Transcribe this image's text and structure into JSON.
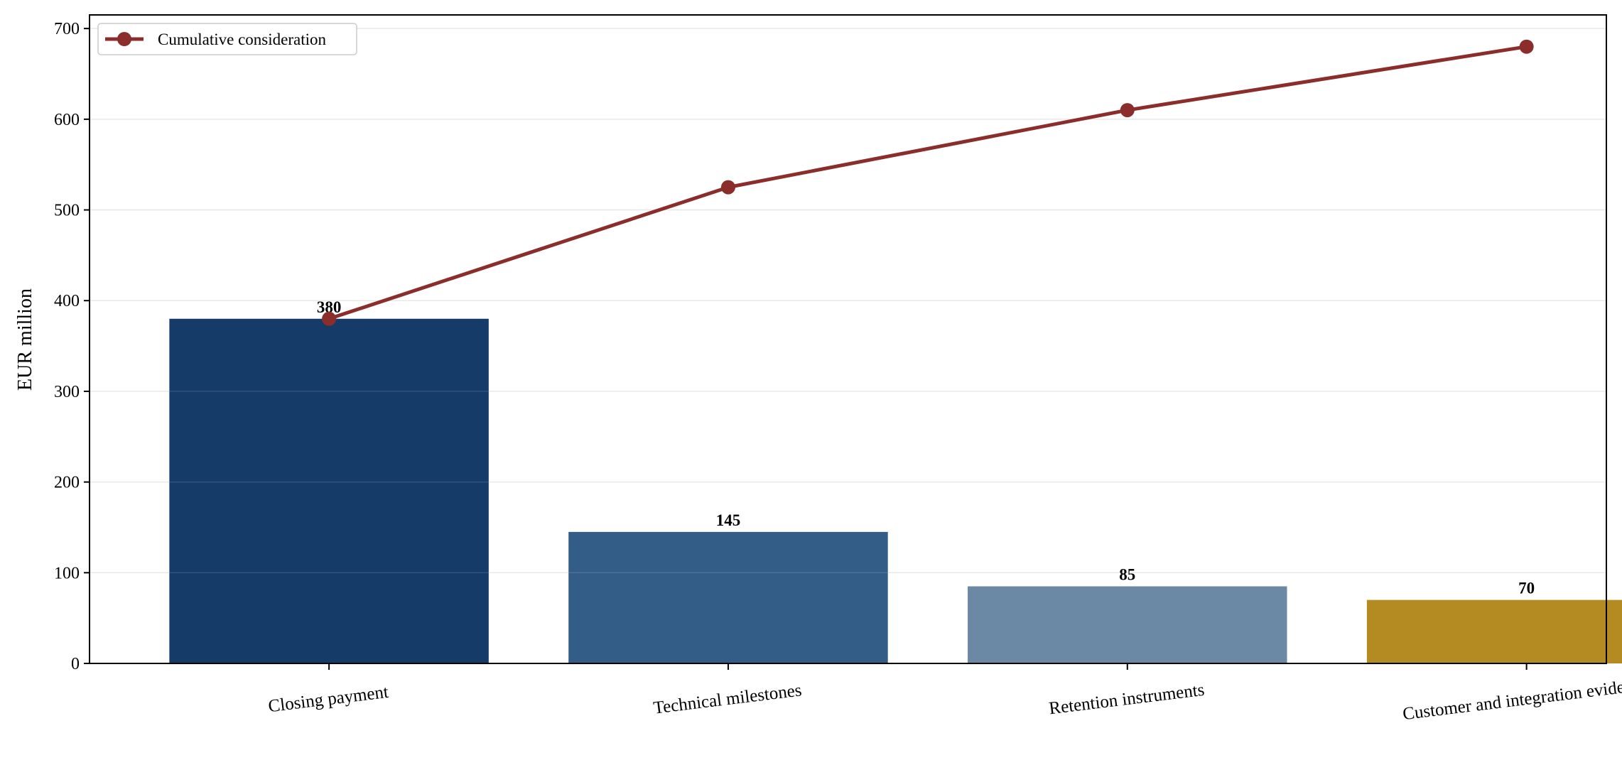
{
  "chart_data": {
    "type": "bar",
    "ylabel": "EUR million",
    "ylim": [
      0,
      715
    ],
    "yticks": [
      0,
      100,
      200,
      300,
      400,
      500,
      600,
      700
    ],
    "grid": "y",
    "legend_position": "top-left",
    "categories": [
      "Closing payment",
      "Technical milestones",
      "Retention instruments",
      "Customer and integration evidence"
    ],
    "series": [
      {
        "type": "bar",
        "values": [
          380,
          145,
          85,
          70
        ],
        "colors": [
          "#153B69",
          "#335D86",
          "#6B89A5",
          "#B38B22"
        ],
        "value_labels": [
          "380",
          "145",
          "85",
          "70"
        ]
      },
      {
        "type": "line",
        "name": "Cumulative consideration",
        "values": [
          380,
          525,
          610,
          680
        ],
        "color": "#8B2E2B"
      }
    ]
  }
}
